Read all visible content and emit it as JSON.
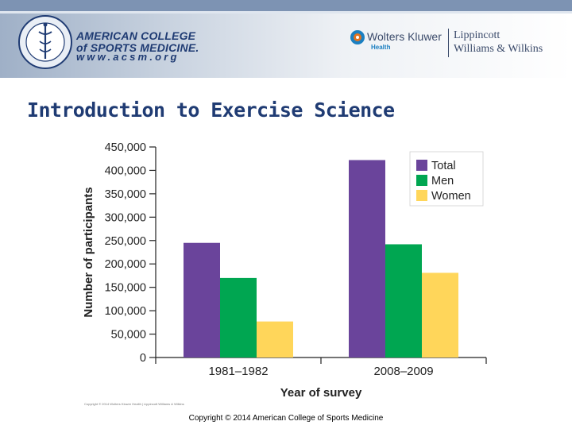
{
  "header": {
    "acsm_line1": "AMERICAN COLLEGE",
    "acsm_line2": "of SPORTS MEDICINE.",
    "acsm_url": "www.acsm.org",
    "publisher_name": "Wolters Kluwer",
    "publisher_division": "Health",
    "imprint_line1": "Lippincott",
    "imprint_line2": "Williams & Wilkins"
  },
  "slide": {
    "title": "Introduction to Exercise Science",
    "figure_credit": "Copyright © 2014 Wolters Kluwer Health | Lippincott Williams & Wilkins",
    "footer_copyright": "Copyright © 2014 American College of Sports Medicine"
  },
  "colors": {
    "total": "#6a449b",
    "men": "#00a651",
    "women": "#ffd65a",
    "axis": "#222222",
    "title": "#1f3b73"
  },
  "chart_data": {
    "type": "bar",
    "title": "",
    "xlabel": "Year of survey",
    "ylabel": "Number of participants",
    "categories": [
      "1981–1982",
      "2008–2009"
    ],
    "series": [
      {
        "name": "Total",
        "values": [
          245000,
          422000
        ]
      },
      {
        "name": "Men",
        "values": [
          170000,
          242000
        ]
      },
      {
        "name": "Women",
        "values": [
          77000,
          181000
        ]
      }
    ],
    "ylim": [
      0,
      450000
    ],
    "yticks": [
      0,
      50000,
      100000,
      150000,
      200000,
      250000,
      300000,
      350000,
      400000,
      450000
    ],
    "ytick_labels": [
      "0",
      "50,000",
      "100,000",
      "150,000",
      "200,000",
      "250,000",
      "300,000",
      "350,000",
      "400,000",
      "450,000"
    ],
    "legend_position": "top-right",
    "grid": false
  }
}
